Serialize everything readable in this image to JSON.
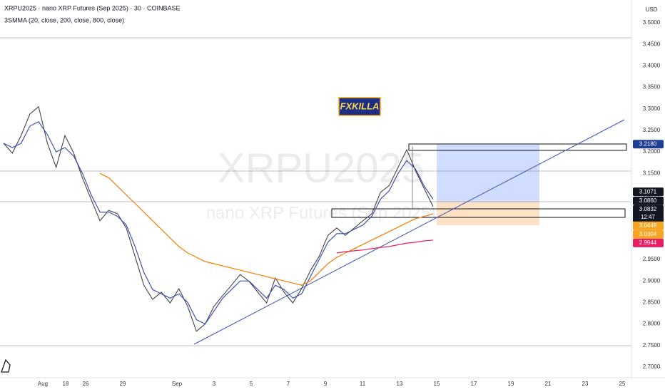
{
  "header": {
    "title": "XRPU2025 · nano XRP Futures (Sep 2025) · 30 · COINBASE",
    "indicator": "3SMMA (20, close, 200, close, 800, close)",
    "currency": "USD"
  },
  "watermark": {
    "symbol": "XRPU2025",
    "description": "nano XRP Futures (Sep 2025)"
  },
  "badge": "FXKILLA",
  "chart_data": {
    "type": "line",
    "x_axis_labels": [
      "Aug",
      "18",
      "26",
      "29",
      "Sep",
      "3",
      "5",
      "7",
      "9",
      "11",
      "13",
      "15",
      "17",
      "19",
      "21",
      "23",
      "25"
    ],
    "ylim": [
      2.675,
      3.553
    ],
    "yticks": [
      {
        "value": 2.7,
        "label": "2.7000"
      },
      {
        "value": 2.75,
        "label": "2.7500"
      },
      {
        "value": 2.8,
        "label": "2.8000"
      },
      {
        "value": 2.85,
        "label": "2.8500"
      },
      {
        "value": 2.9,
        "label": "2.9000"
      },
      {
        "value": 2.95,
        "label": "2.9500"
      },
      {
        "value": 3.0,
        "label": "3.0000"
      },
      {
        "value": 3.05,
        "label": "3.0500"
      },
      {
        "value": 3.1,
        "label": "3.1000"
      },
      {
        "value": 3.15,
        "label": "3.1500"
      },
      {
        "value": 3.2,
        "label": "3.2000"
      },
      {
        "value": 3.25,
        "label": "3.2500"
      },
      {
        "value": 3.3,
        "label": "3.3000"
      },
      {
        "value": 3.35,
        "label": "3.3500"
      },
      {
        "value": 3.4,
        "label": "3.4000"
      },
      {
        "value": 3.45,
        "label": "3.4500"
      },
      {
        "value": 3.5,
        "label": "3.5000"
      }
    ],
    "series": [
      {
        "color": "#444444",
        "values": [
          3.22,
          3.197,
          3.238,
          3.288,
          3.305,
          3.22,
          3.164,
          3.238,
          3.197,
          3.139,
          3.089,
          3.04,
          3.064,
          3.056,
          3.023,
          2.957,
          2.89,
          2.857,
          2.874,
          2.849,
          2.882,
          2.841,
          2.783,
          2.8,
          2.841,
          2.866,
          2.89,
          2.915,
          2.899,
          2.874,
          2.849,
          2.907,
          2.874,
          2.849,
          2.882,
          2.924,
          2.957,
          3.006,
          3.023,
          3.006,
          3.023,
          3.04,
          3.056,
          3.106,
          3.122,
          3.164,
          3.205,
          3.156,
          3.114,
          3.073
        ]
      },
      {
        "color": "#3f51b5",
        "values": [
          3.22,
          3.21,
          3.22,
          3.26,
          3.27,
          3.24,
          3.2,
          3.21,
          3.19,
          3.15,
          3.1,
          3.06,
          3.06,
          3.05,
          3.03,
          2.98,
          2.92,
          2.88,
          2.87,
          2.86,
          2.87,
          2.85,
          2.81,
          2.8,
          2.83,
          2.86,
          2.88,
          2.9,
          2.9,
          2.88,
          2.86,
          2.89,
          2.88,
          2.86,
          2.87,
          2.91,
          2.95,
          2.99,
          3.01,
          3.01,
          3.02,
          3.03,
          3.05,
          3.09,
          3.11,
          3.15,
          3.18,
          3.16,
          3.12,
          3.09
        ]
      },
      {
        "color": "#f57c00",
        "values": [
          null,
          null,
          null,
          null,
          null,
          null,
          null,
          null,
          null,
          null,
          null,
          3.15,
          3.14,
          3.12,
          3.1,
          3.08,
          3.06,
          3.04,
          3.02,
          3.0,
          2.98,
          2.965,
          2.955,
          2.945,
          2.94,
          2.935,
          2.93,
          2.925,
          2.92,
          2.915,
          2.91,
          2.905,
          2.9,
          2.895,
          2.89,
          2.9,
          2.92,
          2.94,
          2.955,
          2.965,
          2.975,
          2.985,
          2.995,
          3.005,
          3.015,
          3.025,
          3.035,
          3.045,
          3.05,
          3.056
        ]
      },
      {
        "color": "#e91e63",
        "values": [
          null,
          null,
          null,
          null,
          null,
          null,
          null,
          null,
          null,
          null,
          null,
          null,
          null,
          null,
          null,
          null,
          null,
          null,
          null,
          null,
          null,
          null,
          null,
          null,
          null,
          null,
          null,
          null,
          null,
          null,
          null,
          null,
          null,
          null,
          null,
          null,
          null,
          null,
          2.965,
          2.968,
          2.97,
          2.972,
          2.975,
          2.978,
          2.98,
          2.984,
          2.988,
          2.99,
          2.993,
          2.995
        ]
      }
    ],
    "price_labels": [
      {
        "value": 3.218,
        "label": "3.2180",
        "color": "#1c3f94"
      },
      {
        "value": 3.1071,
        "label": "3.1071",
        "color": "#131722"
      },
      {
        "value": 3.086,
        "label": "3.0860",
        "color": "#131722"
      },
      {
        "value": 3.0832,
        "label": "3.0832",
        "color": "#131722"
      },
      {
        "value": 3.0448,
        "label": "3.0448",
        "color": "#f5a623"
      },
      {
        "value": 3.0304,
        "label": "3.0304",
        "color": "#f5a623"
      },
      {
        "value": 2.9944,
        "label": "2.9944",
        "color": "#e91e63"
      }
    ],
    "countdown": "12:47"
  }
}
